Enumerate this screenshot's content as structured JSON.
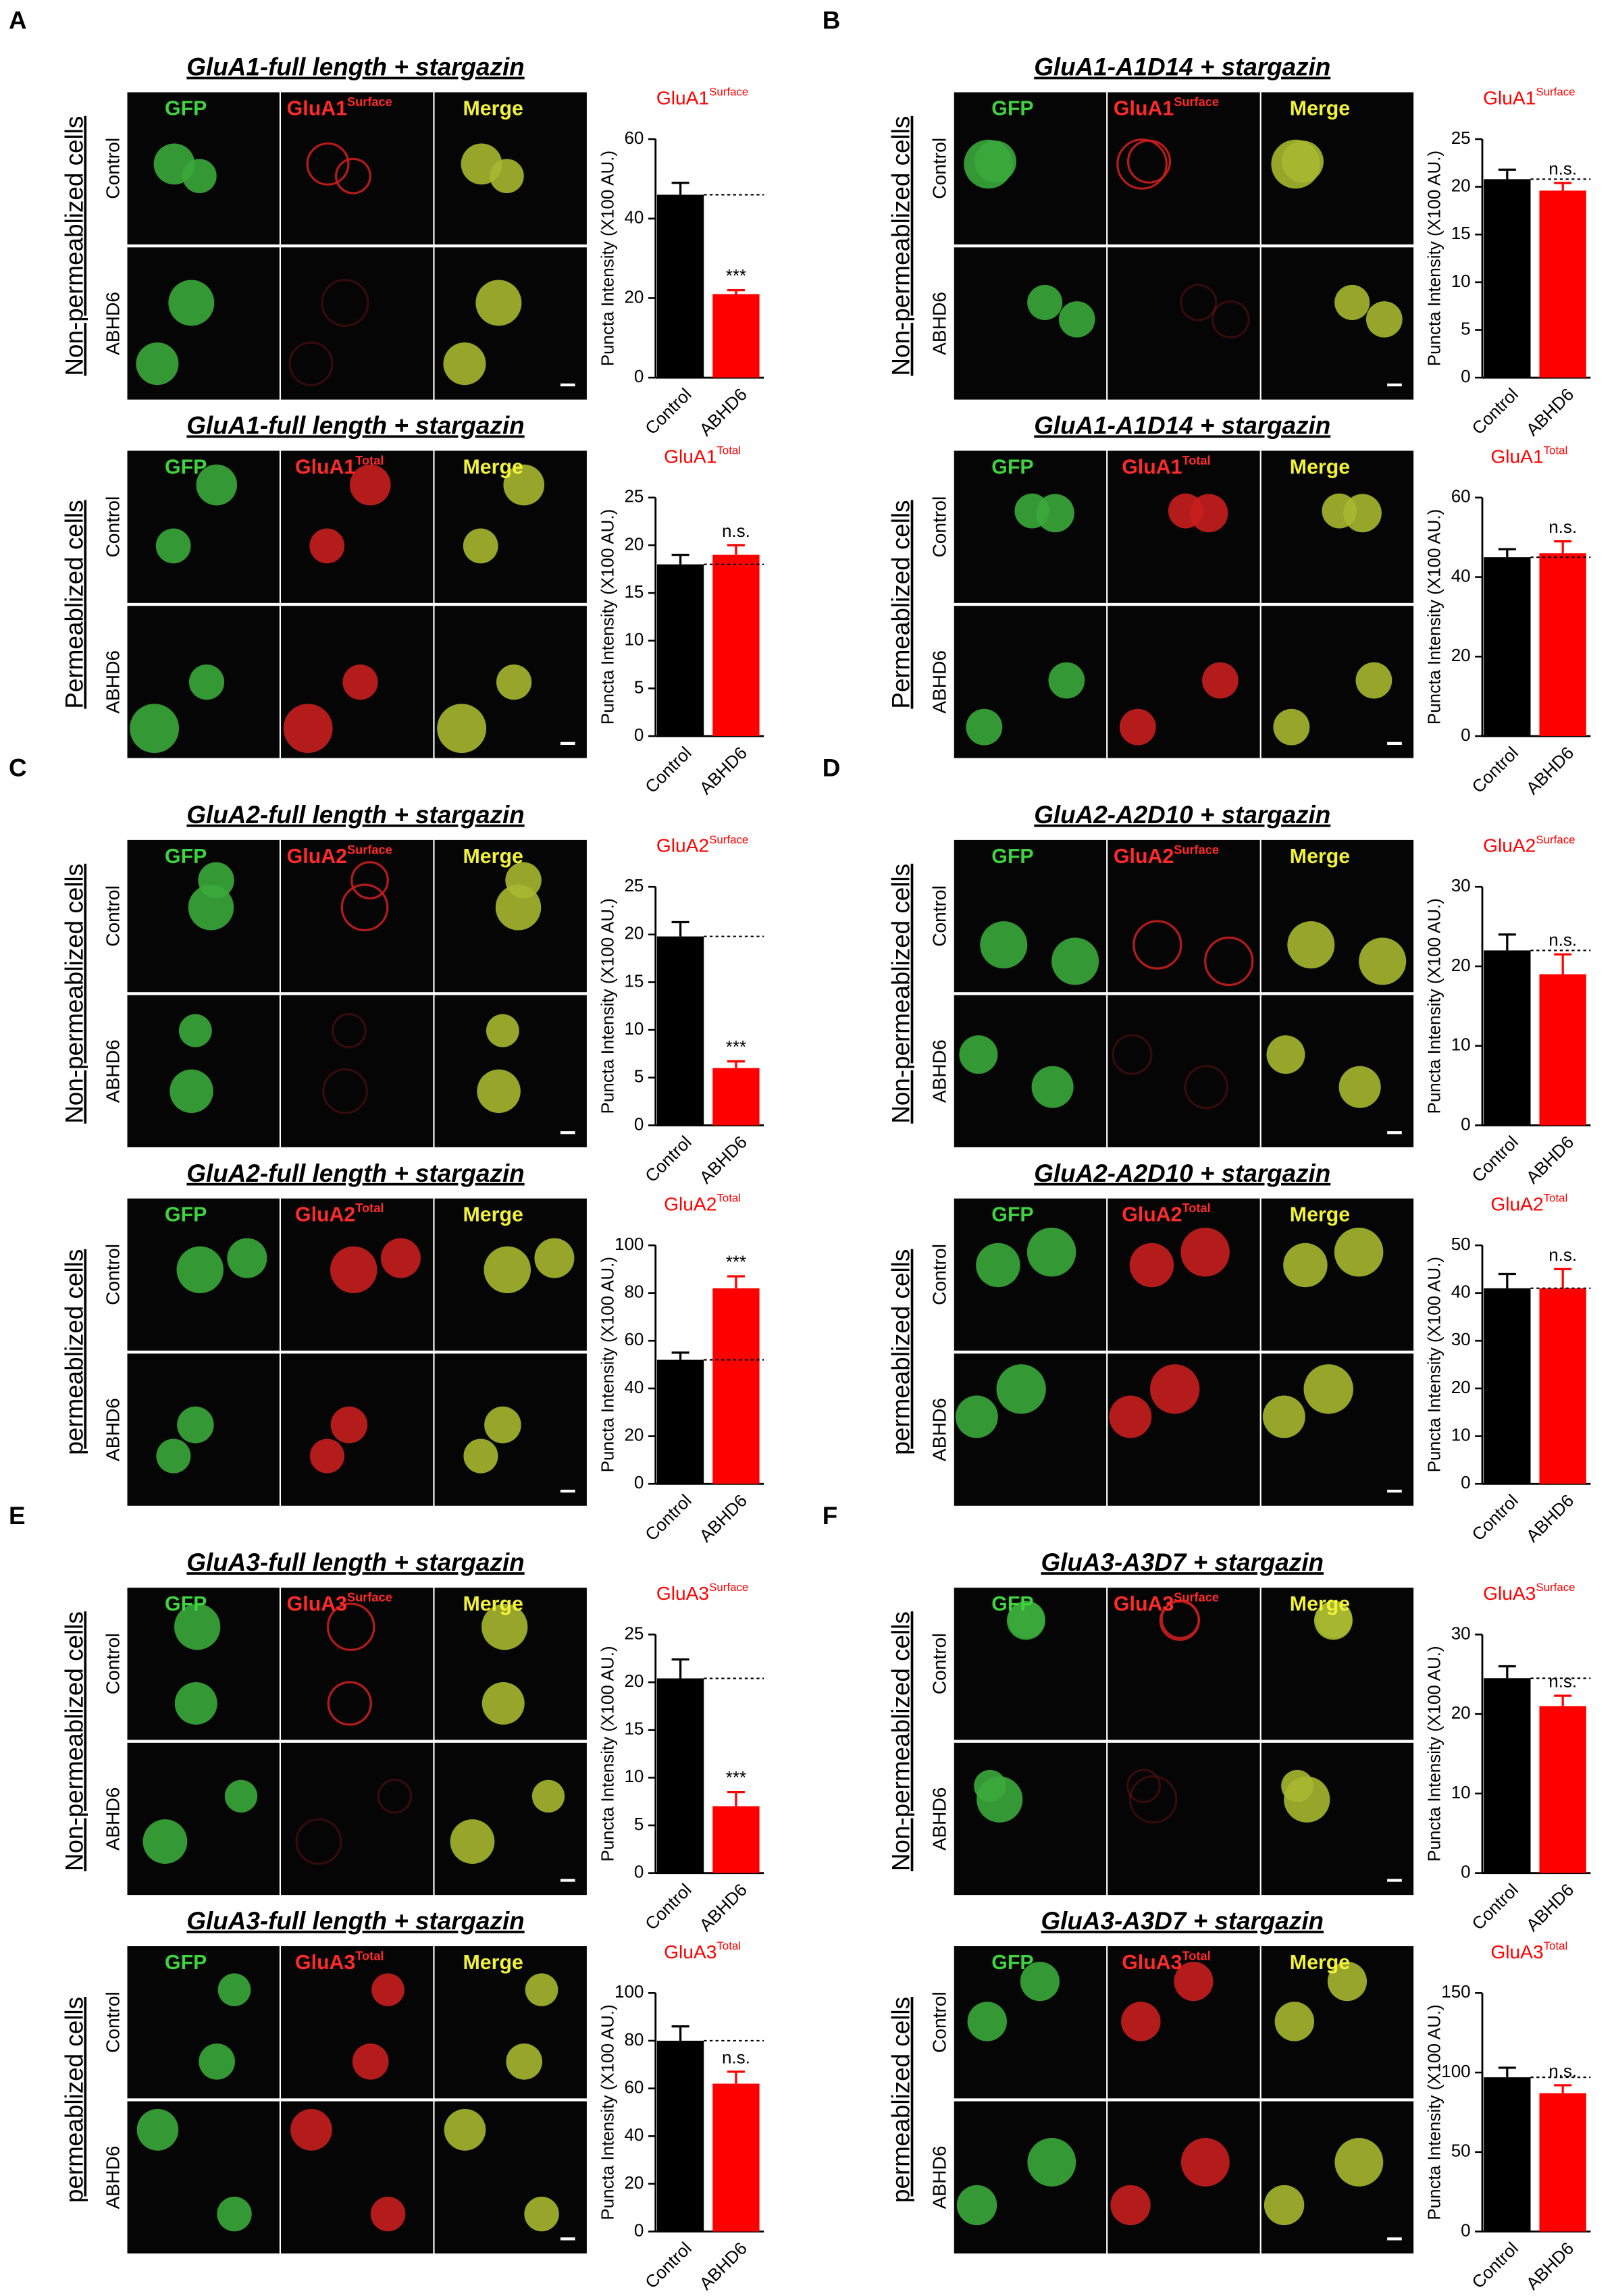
{
  "panels": [
    "A",
    "B",
    "C",
    "D",
    "E",
    "F"
  ],
  "chart_data": [
    {
      "type": "bar",
      "title": "GluA1-full length + stargazin",
      "section_label": "Non-permeablized cells",
      "image_channels": [
        {
          "label": "GFP"
        },
        {
          "label": "GluA1",
          "sup": "Surface"
        },
        {
          "label": "Merge"
        }
      ],
      "categories": [
        "Control",
        "ABHD6"
      ],
      "values": [
        46,
        21
      ],
      "errors": [
        3,
        1
      ],
      "colors": [
        "#000000",
        "#ff0000"
      ],
      "significance": "***",
      "y_label": "Puncta Intensity (X100 AU.)",
      "ylim": [
        0,
        60
      ],
      "yticks": [
        0,
        20,
        40,
        60
      ]
    },
    {
      "type": "bar",
      "title": "GluA1-full length + stargazin",
      "section_label": "Permeablized cells",
      "image_channels": [
        {
          "label": "GFP"
        },
        {
          "label": "GluA1",
          "sup": "Total"
        },
        {
          "label": "Merge"
        }
      ],
      "categories": [
        "Control",
        "ABHD6"
      ],
      "values": [
        18,
        19
      ],
      "errors": [
        1,
        1
      ],
      "colors": [
        "#000000",
        "#ff0000"
      ],
      "significance": "n.s.",
      "y_label": "Puncta Intensity (X100 AU.)",
      "ylim": [
        0,
        25
      ],
      "yticks": [
        0,
        5,
        10,
        15,
        20,
        25
      ]
    },
    {
      "type": "bar",
      "title": "GluA1-A1D14 + stargazin",
      "section_label": "Non-permeablized cells",
      "image_channels": [
        {
          "label": "GFP"
        },
        {
          "label": "GluA1",
          "sup": "Surface"
        },
        {
          "label": "Merge"
        }
      ],
      "categories": [
        "Control",
        "ABHD6"
      ],
      "values": [
        20.8,
        19.6
      ],
      "errors": [
        1,
        0.8
      ],
      "colors": [
        "#000000",
        "#ff0000"
      ],
      "significance": "n.s.",
      "y_label": "Puncta Intensity (X100 AU.)",
      "ylim": [
        0,
        25
      ],
      "yticks": [
        0,
        5,
        10,
        15,
        20,
        25
      ]
    },
    {
      "type": "bar",
      "title": "GluA1-A1D14 + stargazin",
      "section_label": "Permeablized cells",
      "image_channels": [
        {
          "label": "GFP"
        },
        {
          "label": "GluA1",
          "sup": "Total"
        },
        {
          "label": "Merge"
        }
      ],
      "categories": [
        "Control",
        "ABHD6"
      ],
      "values": [
        45,
        46
      ],
      "errors": [
        2,
        3
      ],
      "colors": [
        "#000000",
        "#ff0000"
      ],
      "significance": "n.s.",
      "y_label": "Puncta Intensity (X100 AU.)",
      "ylim": [
        0,
        60
      ],
      "yticks": [
        0,
        20,
        40,
        60
      ]
    },
    {
      "type": "bar",
      "title": "GluA2-full length + stargazin",
      "section_label": "Non-permeablized cells",
      "image_channels": [
        {
          "label": "GFP"
        },
        {
          "label": "GluA2",
          "sup": "Surface"
        },
        {
          "label": "Merge"
        }
      ],
      "categories": [
        "Control",
        "ABHD6"
      ],
      "values": [
        19.8,
        6
      ],
      "errors": [
        1.5,
        0.7
      ],
      "colors": [
        "#000000",
        "#ff0000"
      ],
      "significance": "***",
      "y_label": "Puncta Intensity (X100 AU.)",
      "ylim": [
        0,
        25
      ],
      "yticks": [
        0,
        5,
        10,
        15,
        20,
        25
      ]
    },
    {
      "type": "bar",
      "title": "GluA2-full length + stargazin",
      "section_label": "permeablized cells",
      "image_channels": [
        {
          "label": "GFP"
        },
        {
          "label": "GluA2",
          "sup": "Total"
        },
        {
          "label": "Merge"
        }
      ],
      "categories": [
        "Control",
        "ABHD6"
      ],
      "values": [
        52,
        82
      ],
      "errors": [
        3,
        5
      ],
      "colors": [
        "#000000",
        "#ff0000"
      ],
      "significance": "***",
      "y_label": "Puncta Intensity (X100 AU.)",
      "ylim": [
        0,
        100
      ],
      "yticks": [
        0,
        20,
        40,
        60,
        80,
        100
      ]
    },
    {
      "type": "bar",
      "title": "GluA2-A2D10 + stargazin",
      "section_label": "Non-permeablized cells",
      "image_channels": [
        {
          "label": "GFP"
        },
        {
          "label": "GluA2",
          "sup": "Surface"
        },
        {
          "label": "Merge"
        }
      ],
      "categories": [
        "Control",
        "ABHD6"
      ],
      "values": [
        22,
        19
      ],
      "errors": [
        2,
        2.5
      ],
      "colors": [
        "#000000",
        "#ff0000"
      ],
      "significance": "n.s.",
      "y_label": "Puncta Intensity (X100 AU.)",
      "ylim": [
        0,
        30
      ],
      "yticks": [
        0,
        10,
        20,
        30
      ]
    },
    {
      "type": "bar",
      "title": "GluA2-A2D10 + stargazin",
      "section_label": "permeablized cells",
      "image_channels": [
        {
          "label": "GFP"
        },
        {
          "label": "GluA2",
          "sup": "Total"
        },
        {
          "label": "Merge"
        }
      ],
      "categories": [
        "Control",
        "ABHD6"
      ],
      "values": [
        41,
        41
      ],
      "errors": [
        3,
        4
      ],
      "colors": [
        "#000000",
        "#ff0000"
      ],
      "significance": "n.s.",
      "y_label": "Puncta Intensity (X100 AU.)",
      "ylim": [
        0,
        50
      ],
      "yticks": [
        0,
        10,
        20,
        30,
        40,
        50
      ]
    },
    {
      "type": "bar",
      "title": "GluA3-full length + stargazin",
      "section_label": "Non-permeablized cells",
      "image_channels": [
        {
          "label": "GFP"
        },
        {
          "label": "GluA3",
          "sup": "Surface"
        },
        {
          "label": "Merge"
        }
      ],
      "categories": [
        "Control",
        "ABHD6"
      ],
      "values": [
        20.4,
        7
      ],
      "errors": [
        2,
        1.5
      ],
      "colors": [
        "#000000",
        "#ff0000"
      ],
      "significance": "***",
      "y_label": "Puncta Intensity (X100 AU.)",
      "ylim": [
        0,
        25
      ],
      "yticks": [
        0,
        5,
        10,
        15,
        20,
        25
      ]
    },
    {
      "type": "bar",
      "title": "GluA3-full length + stargazin",
      "section_label": "permeablized cells",
      "image_channels": [
        {
          "label": "GFP"
        },
        {
          "label": "GluA3",
          "sup": "Total"
        },
        {
          "label": "Merge"
        }
      ],
      "categories": [
        "Control",
        "ABHD6"
      ],
      "values": [
        80,
        62
      ],
      "errors": [
        6,
        5
      ],
      "colors": [
        "#000000",
        "#ff0000"
      ],
      "significance": "n.s.",
      "y_label": "Puncta Intensity (X100 AU.)",
      "ylim": [
        0,
        100
      ],
      "yticks": [
        0,
        20,
        40,
        60,
        80,
        100
      ]
    },
    {
      "type": "bar",
      "title": "GluA3-A3D7 + stargazin",
      "section_label": "Non-permeablized cells",
      "image_channels": [
        {
          "label": "GFP"
        },
        {
          "label": "GluA3",
          "sup": "Surface"
        },
        {
          "label": "Merge"
        }
      ],
      "categories": [
        "Control",
        "ABHD6"
      ],
      "values": [
        24.5,
        21
      ],
      "errors": [
        1.5,
        1.3
      ],
      "colors": [
        "#000000",
        "#ff0000"
      ],
      "significance": "n.s.",
      "y_label": "Puncta Intensity (X100 AU.)",
      "ylim": [
        0,
        30
      ],
      "yticks": [
        0,
        10,
        20,
        30
      ]
    },
    {
      "type": "bar",
      "title": "GluA3-A3D7 + stargazin",
      "section_label": "permeablized cells",
      "image_channels": [
        {
          "label": "GFP"
        },
        {
          "label": "GluA3",
          "sup": "Total"
        },
        {
          "label": "Merge"
        }
      ],
      "categories": [
        "Control",
        "ABHD6"
      ],
      "values": [
        97,
        87
      ],
      "errors": [
        6,
        5
      ],
      "colors": [
        "#000000",
        "#ff0000"
      ],
      "significance": "n.s.",
      "y_label": "Puncta Intensity (X100 AU.)",
      "ylim": [
        0,
        150
      ],
      "yticks": [
        0,
        50,
        100,
        150
      ]
    }
  ]
}
